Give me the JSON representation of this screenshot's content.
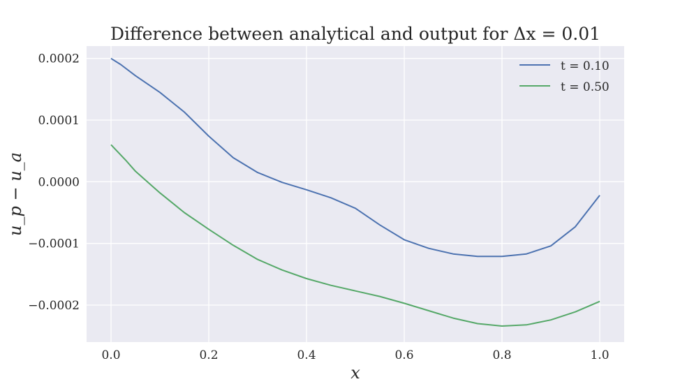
{
  "chart_data": {
    "type": "line",
    "title": "Difference between analytical and output for Δx = 0.01",
    "xlabel": "x",
    "ylabel": "u_p − u_a",
    "xlim": [
      -0.05,
      1.05
    ],
    "ylim": [
      -0.00026,
      0.00022
    ],
    "x_ticks": [
      0.0,
      0.2,
      0.4,
      0.6,
      0.8,
      1.0
    ],
    "x_tick_labels": [
      "0.0",
      "0.2",
      "0.4",
      "0.6",
      "0.8",
      "1.0"
    ],
    "y_ticks": [
      0.0002,
      0.0001,
      0.0,
      -0.0001,
      -0.0002
    ],
    "y_tick_labels": [
      "0.0002",
      "0.0001",
      "0.0000",
      "−0.0001",
      "−0.0002"
    ],
    "grid": true,
    "legend_position": "top-right",
    "series": [
      {
        "name": "t = 0.10",
        "color": "#4c72b0",
        "x": [
          0.0,
          0.02,
          0.05,
          0.1,
          0.15,
          0.2,
          0.25,
          0.3,
          0.35,
          0.4,
          0.45,
          0.5,
          0.55,
          0.6,
          0.65,
          0.7,
          0.75,
          0.8,
          0.85,
          0.9,
          0.95,
          1.0
        ],
        "y": [
          0.0002,
          0.00019,
          0.000172,
          0.000145,
          0.000113,
          7.4e-05,
          3.9e-05,
          1.5e-05,
          -1e-06,
          -1.3e-05,
          -2.6e-05,
          -4.3e-05,
          -7e-05,
          -9.4e-05,
          -0.000108,
          -0.000117,
          -0.000121,
          -0.000121,
          -0.000117,
          -0.000104,
          -7.3e-05,
          -2.2e-05
        ]
      },
      {
        "name": "t = 0.50",
        "color": "#55a868",
        "x": [
          0.0,
          0.03,
          0.05,
          0.1,
          0.15,
          0.2,
          0.25,
          0.3,
          0.35,
          0.4,
          0.45,
          0.5,
          0.55,
          0.6,
          0.65,
          0.7,
          0.75,
          0.8,
          0.85,
          0.9,
          0.95,
          1.0
        ],
        "y": [
          6e-05,
          3.5e-05,
          1.7e-05,
          -1.8e-05,
          -5e-05,
          -7.7e-05,
          -0.000103,
          -0.000126,
          -0.000143,
          -0.000157,
          -0.000168,
          -0.000177,
          -0.000186,
          -0.000197,
          -0.000209,
          -0.000221,
          -0.00023,
          -0.000234,
          -0.000232,
          -0.000224,
          -0.000211,
          -0.000194
        ]
      }
    ]
  }
}
